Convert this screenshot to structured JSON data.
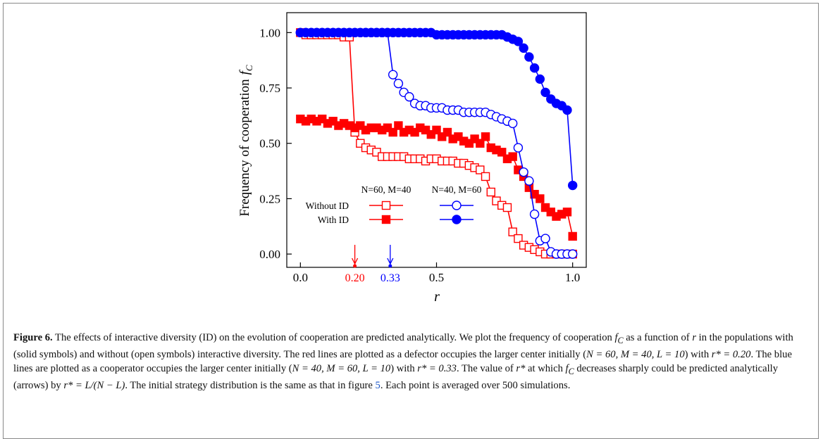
{
  "chart_data": {
    "type": "line",
    "xlabel": "r",
    "ylabel": "Frequency of cooperation",
    "ylabel_symbol": "f",
    "ylabel_subscript": "C",
    "xlim": [
      -0.05,
      1.05
    ],
    "ylim": [
      -0.06,
      1.09
    ],
    "xticks": [
      {
        "value": 0,
        "label": "0.0"
      },
      {
        "value": 0.5,
        "label": "0.5"
      },
      {
        "value": 1,
        "label": "1.0"
      }
    ],
    "yticks": [
      {
        "value": 0,
        "label": "0.00"
      },
      {
        "value": 0.25,
        "label": "0.25"
      },
      {
        "value": 0.5,
        "label": "0.50"
      },
      {
        "value": 0.75,
        "label": "0.75"
      },
      {
        "value": 1,
        "label": "1.00"
      }
    ],
    "x": [
      0,
      0.02,
      0.04,
      0.06,
      0.08,
      0.1,
      0.12,
      0.14,
      0.16,
      0.18,
      0.2,
      0.22,
      0.24,
      0.26,
      0.28,
      0.3,
      0.32,
      0.34,
      0.36,
      0.38,
      0.4,
      0.42,
      0.44,
      0.46,
      0.48,
      0.5,
      0.52,
      0.54,
      0.56,
      0.58,
      0.6,
      0.62,
      0.64,
      0.66,
      0.68,
      0.7,
      0.72,
      0.74,
      0.76,
      0.78,
      0.8,
      0.82,
      0.84,
      0.86,
      0.88,
      0.9,
      0.92,
      0.94,
      0.96,
      0.98,
      1
    ],
    "series": [
      {
        "color": "#ff0000",
        "marker": "square",
        "filled": false,
        "legend_row": 0,
        "legend_col": 0,
        "values": [
          1.0,
          0.99,
          0.99,
          0.99,
          0.99,
          0.99,
          0.99,
          0.99,
          0.98,
          0.98,
          0.55,
          0.5,
          0.48,
          0.47,
          0.46,
          0.44,
          0.44,
          0.44,
          0.44,
          0.44,
          0.43,
          0.43,
          0.43,
          0.42,
          0.43,
          0.43,
          0.42,
          0.42,
          0.42,
          0.41,
          0.41,
          0.4,
          0.39,
          0.38,
          0.35,
          0.28,
          0.24,
          0.22,
          0.21,
          0.1,
          0.07,
          0.04,
          0.03,
          0.02,
          0.01,
          0,
          0,
          0,
          0,
          0,
          0
        ]
      },
      {
        "color": "#ff0000",
        "marker": "square",
        "filled": true,
        "legend_row": 1,
        "legend_col": 0,
        "values": [
          0.61,
          0.6,
          0.61,
          0.6,
          0.61,
          0.59,
          0.6,
          0.58,
          0.59,
          0.58,
          0.57,
          0.58,
          0.56,
          0.57,
          0.57,
          0.56,
          0.57,
          0.55,
          0.58,
          0.55,
          0.56,
          0.55,
          0.57,
          0.56,
          0.54,
          0.56,
          0.53,
          0.55,
          0.52,
          0.53,
          0.51,
          0.5,
          0.52,
          0.5,
          0.53,
          0.48,
          0.47,
          0.46,
          0.43,
          0.44,
          0.38,
          0.35,
          0.3,
          0.27,
          0.25,
          0.21,
          0.19,
          0.17,
          0.18,
          0.19,
          0.08
        ]
      },
      {
        "color": "#0000ff",
        "marker": "circle",
        "filled": false,
        "legend_row": 0,
        "legend_col": 1,
        "values": [
          1,
          1,
          1,
          1,
          1,
          1,
          1,
          1,
          1,
          1,
          1,
          1,
          1,
          1,
          1,
          1,
          1,
          0.81,
          0.77,
          0.73,
          0.71,
          0.68,
          0.67,
          0.67,
          0.66,
          0.66,
          0.66,
          0.65,
          0.65,
          0.65,
          0.64,
          0.64,
          0.64,
          0.64,
          0.64,
          0.63,
          0.62,
          0.61,
          0.6,
          0.59,
          0.48,
          0.37,
          0.33,
          0.18,
          0.06,
          0.07,
          0.01,
          0,
          0,
          0,
          0
        ]
      },
      {
        "color": "#0000ff",
        "marker": "circle",
        "filled": true,
        "legend_row": 1,
        "legend_col": 1,
        "values": [
          1,
          1,
          1,
          1,
          1,
          1,
          1,
          1,
          1,
          1,
          1,
          1,
          1,
          1,
          1,
          1,
          1,
          1,
          1,
          1,
          1,
          1,
          1,
          1,
          1,
          0.99,
          0.99,
          0.99,
          0.99,
          0.99,
          0.99,
          0.99,
          0.99,
          0.99,
          0.99,
          0.99,
          0.99,
          0.99,
          0.98,
          0.97,
          0.96,
          0.93,
          0.89,
          0.84,
          0.79,
          0.73,
          0.7,
          0.68,
          0.67,
          0.65,
          0.31
        ]
      }
    ],
    "legend": {
      "columns": [
        "N=60, M=40",
        "N=40, M=60"
      ],
      "rows": [
        "Without  ID",
        "With  ID"
      ]
    },
    "arrows": [
      {
        "x": 0.2,
        "label": "0.20",
        "color": "#ff0000"
      },
      {
        "x": 0.33,
        "label": "0.33",
        "color": "#0000ff"
      }
    ]
  },
  "caption": {
    "label": "Figure 6.",
    "runs": [
      [
        " The effects of interactive diversity (ID) on the evolution of cooperation are predicted analytically. We plot the frequency of cooperation ",
        "n"
      ],
      [
        "f",
        "i"
      ],
      [
        "C",
        "s"
      ],
      [
        " as a function of ",
        "n"
      ],
      [
        "r",
        "i"
      ],
      [
        " in the populations with (solid symbols) and without (open symbols) interactive diversity. The red lines are plotted as a defector occupies the larger center initially (",
        "n"
      ],
      [
        "N = 60, M = 40, L = 10",
        "i"
      ],
      [
        ") with ",
        "n"
      ],
      [
        "r* = 0.20",
        "i"
      ],
      [
        ". The blue lines are plotted as a cooperator occupies the larger center initially (",
        "n"
      ],
      [
        "N = 40, M = 60, L = 10",
        "i"
      ],
      [
        ") with ",
        "n"
      ],
      [
        "r* = 0.33",
        "i"
      ],
      [
        ". The value of ",
        "n"
      ],
      [
        "r*",
        "i"
      ],
      [
        " at which ",
        "n"
      ],
      [
        "f",
        "i"
      ],
      [
        "C",
        "s"
      ],
      [
        " decreases sharply could be predicted analytically (arrows) by ",
        "n"
      ],
      [
        "r* = L/(N − L)",
        "i"
      ],
      [
        ". The initial strategy distribution is the same as that in figure ",
        "n"
      ],
      [
        "5",
        "a"
      ],
      [
        ". Each point is averaged over 500 simulations.",
        "n"
      ]
    ]
  }
}
